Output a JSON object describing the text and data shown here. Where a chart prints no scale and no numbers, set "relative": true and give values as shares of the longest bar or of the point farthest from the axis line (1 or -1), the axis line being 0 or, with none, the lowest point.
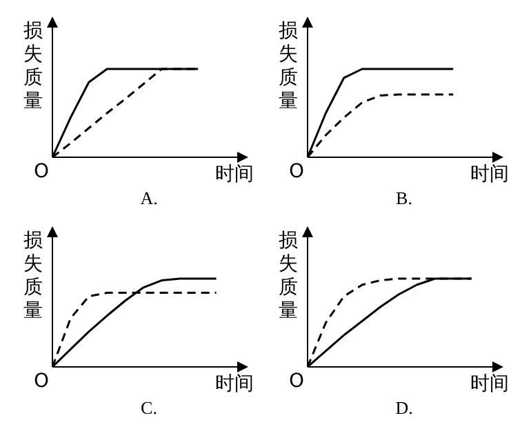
{
  "chart_data": [
    {
      "type": "line",
      "relative": true,
      "ylabel": "损失质量",
      "xlabel": "时间",
      "annotations": [
        "O",
        "A."
      ],
      "marker": "none",
      "categories": [
        null,
        null,
        null,
        null,
        null,
        null,
        null,
        null,
        null,
        null,
        null
      ],
      "series": [
        {
          "color": "#000000",
          "line_style": "solid",
          "values": [
            0,
            0.45,
            0.85,
            1,
            1,
            1,
            1,
            1,
            1,
            null,
            null
          ]
        },
        {
          "color": "#000000",
          "line_style": "dashed",
          "values": [
            0,
            0.16,
            0.33,
            0.5,
            0.66,
            0.83,
            1,
            1,
            1,
            null,
            null
          ]
        }
      ]
    },
    {
      "type": "line",
      "relative": true,
      "ylabel": "损失质量",
      "xlabel": "时间",
      "annotations": [
        "O",
        "B."
      ],
      "marker": "none",
      "categories": [
        null,
        null,
        null,
        null,
        null,
        null,
        null,
        null,
        null,
        null,
        null
      ],
      "series": [
        {
          "color": "#000000",
          "line_style": "solid",
          "values": [
            0,
            0.5,
            0.9,
            1,
            1,
            1,
            1,
            1,
            1,
            null,
            null
          ]
        },
        {
          "color": "#000000",
          "line_style": "dashed",
          "values": [
            0,
            0.25,
            0.45,
            0.62,
            0.7,
            0.71,
            0.71,
            0.71,
            0.71,
            null,
            null
          ]
        }
      ]
    },
    {
      "type": "line",
      "relative": true,
      "ylabel": "损失质量",
      "xlabel": "时间",
      "annotations": [
        "O",
        "C."
      ],
      "marker": "none",
      "categories": [
        null,
        null,
        null,
        null,
        null,
        null,
        null,
        null,
        null,
        null,
        null
      ],
      "series": [
        {
          "color": "#000000",
          "line_style": "solid",
          "values": [
            0,
            0.2,
            0.4,
            0.58,
            0.75,
            0.9,
            0.98,
            1,
            1,
            1,
            null
          ]
        },
        {
          "color": "#000000",
          "line_style": "dashed",
          "values": [
            0,
            0.55,
            0.8,
            0.84,
            0.84,
            0.84,
            0.84,
            0.84,
            0.84,
            0.84,
            null
          ]
        }
      ]
    },
    {
      "type": "line",
      "relative": true,
      "ylabel": "损失质量",
      "xlabel": "时间",
      "annotations": [
        "O",
        "D."
      ],
      "marker": "none",
      "categories": [
        null,
        null,
        null,
        null,
        null,
        null,
        null,
        null,
        null,
        null,
        null
      ],
      "series": [
        {
          "color": "#000000",
          "line_style": "solid",
          "values": [
            0,
            0.18,
            0.36,
            0.52,
            0.68,
            0.82,
            0.93,
            1,
            1,
            1,
            null
          ]
        },
        {
          "color": "#000000",
          "line_style": "dashed",
          "values": [
            0,
            0.5,
            0.8,
            0.93,
            0.98,
            1,
            1,
            1,
            1,
            1,
            null
          ]
        }
      ]
    }
  ]
}
